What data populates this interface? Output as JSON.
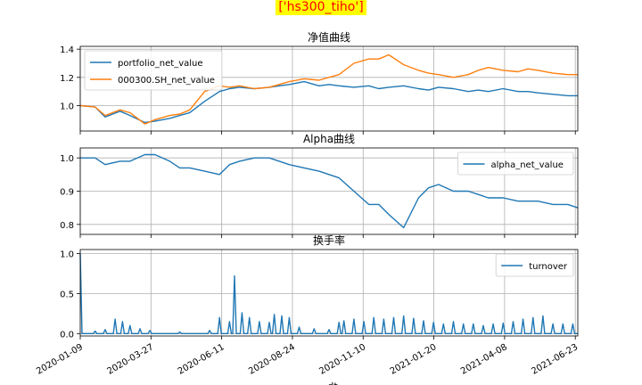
{
  "figure": {
    "suptitle": "['hs300_tiho']",
    "xlabel": "dt",
    "x_ticks": [
      "2020-01-09",
      "2020-03-27",
      "2020-06-11",
      "2020-08-24",
      "2020-11-10",
      "2021-01-20",
      "2021-04-08",
      "2021-06-23"
    ]
  },
  "chart_data": [
    {
      "type": "line",
      "title": "净值曲线",
      "ylim": [
        0.82,
        1.42
      ],
      "y_ticks": [
        "1.0",
        "1.2",
        "1.4"
      ],
      "y_tick_values": [
        1.0,
        1.2,
        1.4
      ],
      "grid": true,
      "legend": "top-left",
      "x": [
        0,
        0.03,
        0.05,
        0.08,
        0.1,
        0.13,
        0.15,
        0.18,
        0.2,
        0.22,
        0.25,
        0.28,
        0.3,
        0.32,
        0.35,
        0.38,
        0.4,
        0.42,
        0.45,
        0.48,
        0.5,
        0.52,
        0.55,
        0.58,
        0.6,
        0.62,
        0.65,
        0.68,
        0.7,
        0.72,
        0.75,
        0.78,
        0.8,
        0.82,
        0.85,
        0.88,
        0.9,
        0.92,
        0.95,
        0.98,
        1.0
      ],
      "series": [
        {
          "name": "portfolio_net_value",
          "color": "#1f77b4",
          "values": [
            1.0,
            0.99,
            0.92,
            0.96,
            0.93,
            0.88,
            0.89,
            0.91,
            0.93,
            0.95,
            1.03,
            1.1,
            1.12,
            1.13,
            1.12,
            1.13,
            1.14,
            1.15,
            1.17,
            1.14,
            1.15,
            1.14,
            1.13,
            1.14,
            1.12,
            1.13,
            1.14,
            1.12,
            1.11,
            1.13,
            1.12,
            1.1,
            1.11,
            1.1,
            1.12,
            1.1,
            1.1,
            1.09,
            1.08,
            1.07,
            1.07
          ]
        },
        {
          "name": "000300.SH_net_value",
          "color": "#ff7f0e",
          "values": [
            1.0,
            0.99,
            0.93,
            0.97,
            0.95,
            0.87,
            0.9,
            0.93,
            0.94,
            0.97,
            1.1,
            1.14,
            1.13,
            1.14,
            1.12,
            1.13,
            1.15,
            1.17,
            1.19,
            1.18,
            1.2,
            1.22,
            1.3,
            1.33,
            1.33,
            1.36,
            1.29,
            1.25,
            1.23,
            1.22,
            1.2,
            1.22,
            1.25,
            1.27,
            1.25,
            1.24,
            1.26,
            1.25,
            1.23,
            1.22,
            1.22
          ]
        }
      ]
    },
    {
      "type": "line",
      "title": "Alpha曲线",
      "ylim": [
        0.77,
        1.03
      ],
      "y_ticks": [
        "0.8",
        "0.9",
        "1.0"
      ],
      "y_tick_values": [
        0.8,
        0.9,
        1.0
      ],
      "grid": true,
      "legend": "top-right",
      "x": [
        0,
        0.03,
        0.05,
        0.08,
        0.1,
        0.13,
        0.15,
        0.18,
        0.2,
        0.22,
        0.25,
        0.28,
        0.3,
        0.32,
        0.35,
        0.38,
        0.4,
        0.42,
        0.45,
        0.48,
        0.5,
        0.52,
        0.55,
        0.58,
        0.6,
        0.62,
        0.65,
        0.68,
        0.7,
        0.72,
        0.75,
        0.78,
        0.8,
        0.82,
        0.85,
        0.88,
        0.9,
        0.92,
        0.95,
        0.98,
        1.0
      ],
      "series": [
        {
          "name": "alpha_net_value",
          "color": "#1f77b4",
          "values": [
            1.0,
            1.0,
            0.98,
            0.99,
            0.99,
            1.01,
            1.01,
            0.99,
            0.97,
            0.97,
            0.96,
            0.95,
            0.98,
            0.99,
            1.0,
            1.0,
            0.99,
            0.98,
            0.97,
            0.96,
            0.95,
            0.94,
            0.9,
            0.86,
            0.86,
            0.83,
            0.79,
            0.88,
            0.91,
            0.92,
            0.9,
            0.9,
            0.89,
            0.88,
            0.88,
            0.87,
            0.87,
            0.87,
            0.86,
            0.86,
            0.85
          ]
        }
      ]
    },
    {
      "type": "line",
      "title": "换手率",
      "ylim": [
        -0.03,
        1.05
      ],
      "y_ticks": [
        "0.0",
        "0.5",
        "1.0"
      ],
      "y_tick_values": [
        0.0,
        0.5,
        1.0
      ],
      "grid": true,
      "legend": "top-right",
      "series": [
        {
          "name": "turnover",
          "color": "#1f77b4",
          "spikes": [
            [
              0.0,
              1.0
            ],
            [
              0.03,
              0.03
            ],
            [
              0.05,
              0.05
            ],
            [
              0.07,
              0.18
            ],
            [
              0.085,
              0.15
            ],
            [
              0.1,
              0.1
            ],
            [
              0.12,
              0.06
            ],
            [
              0.14,
              0.04
            ],
            [
              0.2,
              0.02
            ],
            [
              0.26,
              0.04
            ],
            [
              0.28,
              0.2
            ],
            [
              0.3,
              0.15
            ],
            [
              0.31,
              0.72
            ],
            [
              0.325,
              0.26
            ],
            [
              0.34,
              0.2
            ],
            [
              0.36,
              0.15
            ],
            [
              0.38,
              0.14
            ],
            [
              0.39,
              0.24
            ],
            [
              0.405,
              0.22
            ],
            [
              0.42,
              0.2
            ],
            [
              0.44,
              0.08
            ],
            [
              0.47,
              0.06
            ],
            [
              0.5,
              0.05
            ],
            [
              0.52,
              0.14
            ],
            [
              0.53,
              0.16
            ],
            [
              0.55,
              0.18
            ],
            [
              0.57,
              0.15
            ],
            [
              0.59,
              0.2
            ],
            [
              0.61,
              0.18
            ],
            [
              0.63,
              0.2
            ],
            [
              0.65,
              0.22
            ],
            [
              0.67,
              0.19
            ],
            [
              0.69,
              0.16
            ],
            [
              0.71,
              0.14
            ],
            [
              0.73,
              0.12
            ],
            [
              0.75,
              0.15
            ],
            [
              0.77,
              0.12
            ],
            [
              0.79,
              0.12
            ],
            [
              0.81,
              0.1
            ],
            [
              0.83,
              0.12
            ],
            [
              0.85,
              0.13
            ],
            [
              0.87,
              0.15
            ],
            [
              0.89,
              0.18
            ],
            [
              0.91,
              0.2
            ],
            [
              0.93,
              0.22
            ],
            [
              0.95,
              0.12
            ],
            [
              0.97,
              0.12
            ],
            [
              0.99,
              0.12
            ]
          ]
        }
      ]
    }
  ]
}
